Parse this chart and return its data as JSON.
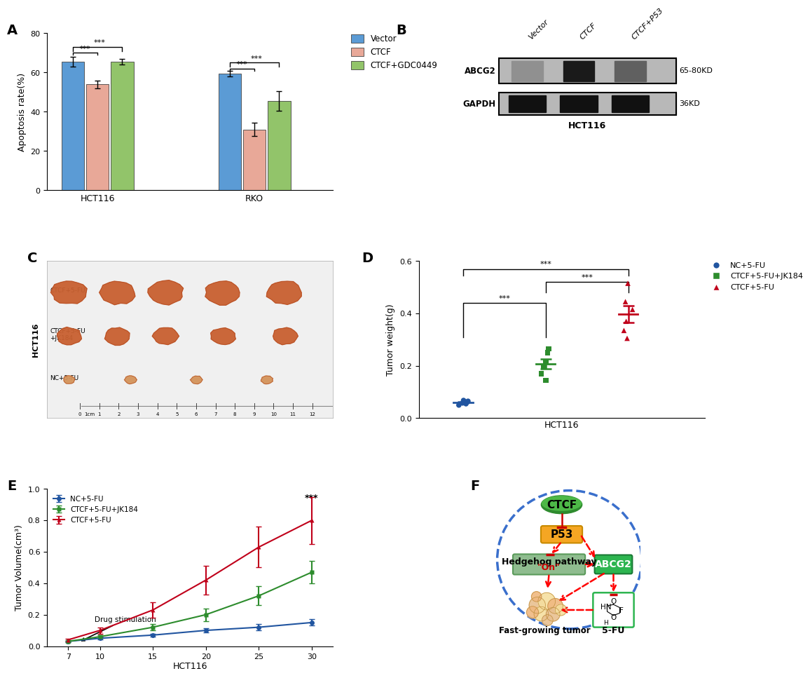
{
  "panel_A": {
    "groups": [
      "HCT116",
      "RKO"
    ],
    "conditions": [
      "Vector",
      "CTCF",
      "CTCF+GDC0449"
    ],
    "values": {
      "HCT116": [
        65.5,
        54.0,
        65.5
      ],
      "RKO": [
        59.5,
        31.0,
        45.5
      ]
    },
    "errors": {
      "HCT116": [
        2.5,
        2.0,
        1.5
      ],
      "RKO": [
        1.5,
        3.5,
        5.0
      ]
    },
    "colors": [
      "#5b9bd5",
      "#e8a898",
      "#92c46a"
    ],
    "ylabel": "Apoptosis rate(%)",
    "ylim": [
      0,
      80
    ],
    "yticks": [
      0,
      20,
      40,
      60,
      80
    ]
  },
  "panel_D": {
    "ylabel": "Tumor weight(g)",
    "xlabel": "HCT116",
    "ylim": [
      0.0,
      0.6
    ],
    "yticks": [
      0.0,
      0.2,
      0.4,
      0.6
    ],
    "groups": {
      "NC+5-FU": {
        "color": "#2155a0",
        "marker": "o",
        "points": [
          0.05,
          0.055,
          0.058,
          0.062,
          0.065,
          0.068
        ]
      },
      "CTCF+5-FU+JK184": {
        "color": "#2d8c2d",
        "marker": "s",
        "points": [
          0.145,
          0.17,
          0.195,
          0.215,
          0.25,
          0.265
        ]
      },
      "CTCF+5-FU": {
        "color": "#c0001a",
        "marker": "^",
        "points": [
          0.305,
          0.335,
          0.37,
          0.415,
          0.445,
          0.515
        ]
      }
    }
  },
  "panel_E": {
    "ylabel": "Tumor Volume(cm³)",
    "xlabel": "HCT116",
    "ylim": [
      0,
      1.0
    ],
    "yticks": [
      0.0,
      0.2,
      0.4,
      0.6,
      0.8,
      1.0
    ],
    "xticks": [
      7,
      10,
      15,
      20,
      25,
      30
    ],
    "series": {
      "NC+5-FU": {
        "color": "#2155a0",
        "marker": "o",
        "x": [
          7,
          10,
          15,
          20,
          25,
          30
        ],
        "y": [
          0.03,
          0.05,
          0.07,
          0.1,
          0.12,
          0.15
        ],
        "err": [
          0.005,
          0.008,
          0.01,
          0.015,
          0.02,
          0.02
        ]
      },
      "CTCF+5-FU+JK184": {
        "color": "#2d8c2d",
        "marker": "s",
        "x": [
          7,
          10,
          15,
          20,
          25,
          30
        ],
        "y": [
          0.03,
          0.06,
          0.12,
          0.2,
          0.32,
          0.47
        ],
        "err": [
          0.005,
          0.01,
          0.02,
          0.04,
          0.06,
          0.07
        ]
      },
      "CTCF+5-FU": {
        "color": "#c0001a",
        "marker": "^",
        "x": [
          7,
          10,
          15,
          20,
          25,
          30
        ],
        "y": [
          0.04,
          0.1,
          0.23,
          0.42,
          0.63,
          0.8
        ],
        "err": [
          0.008,
          0.02,
          0.05,
          0.09,
          0.13,
          0.15
        ]
      }
    }
  },
  "panel_F": {
    "ctcf_color": "#4db847",
    "ctcf_color2": "#2e8b2e",
    "p53_color": "#f5a623",
    "hh_color": "#8fbc8f",
    "hh_border": "#5a9a5a",
    "abcg2_color": "#2db550",
    "fu_border": "#2db550",
    "ellipse_color": "#3a6fcc",
    "arrow_color": "#cc0000",
    "tumor_colors": [
      "#f5dfa0",
      "#e8c090",
      "#d4a870"
    ],
    "tumor_outline": "#c09040"
  }
}
